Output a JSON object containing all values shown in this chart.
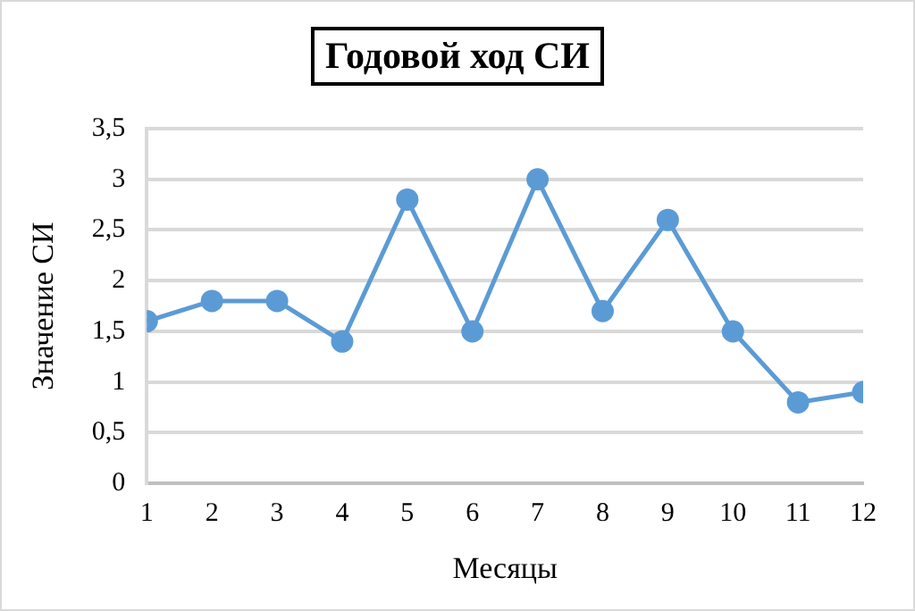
{
  "chart_data": {
    "type": "line",
    "title": "Годовой ход СИ",
    "xlabel": "Месяцы",
    "ylabel": "Значение СИ",
    "x": [
      1,
      2,
      3,
      4,
      5,
      6,
      7,
      8,
      9,
      10,
      11,
      12
    ],
    "series": [
      {
        "color": "#5b9bd5",
        "values": [
          1.6,
          1.8,
          1.8,
          1.4,
          2.8,
          1.5,
          3.0,
          1.7,
          2.6,
          1.5,
          0.8,
          0.9
        ]
      }
    ],
    "xlim": [
      1,
      12
    ],
    "xticks": [
      1,
      2,
      3,
      4,
      5,
      6,
      7,
      8,
      9,
      10,
      11,
      12
    ],
    "ylim": [
      0,
      3.5
    ],
    "yticks": [
      0,
      {
        "value": 0.5,
        "label": "0,5"
      },
      1,
      {
        "value": 1.5,
        "label": "1,5"
      },
      2,
      {
        "value": 2.5,
        "label": "2,5"
      },
      3,
      {
        "value": 3.5,
        "label": "3,5"
      }
    ],
    "grid": "y",
    "marker": "circle",
    "line_style": "solid"
  }
}
